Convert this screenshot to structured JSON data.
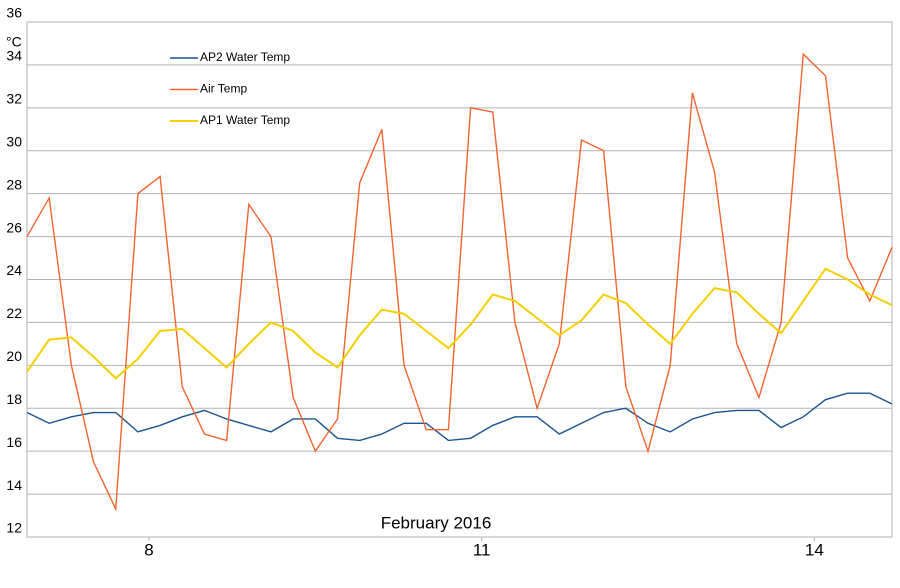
{
  "chart_data": {
    "type": "line",
    "y_label": "°C",
    "x_label": "February 2016",
    "x": [
      6.9,
      7.1,
      7.3,
      7.5,
      7.7,
      7.9,
      8.1,
      8.3,
      8.5,
      8.7,
      8.9,
      9.1,
      9.3,
      9.5,
      9.7,
      9.9,
      10.1,
      10.3,
      10.5,
      10.7,
      10.9,
      11.1,
      11.3,
      11.5,
      11.7,
      11.9,
      12.1,
      12.3,
      12.5,
      12.7,
      12.9,
      13.1,
      13.3,
      13.5,
      13.7,
      13.9,
      14.1,
      14.3,
      14.5,
      14.7
    ],
    "series": [
      {
        "name": "AP2 Water Temp",
        "color": "#1a5490",
        "values": [
          17.8,
          17.3,
          17.6,
          17.8,
          17.8,
          16.9,
          17.2,
          17.6,
          17.9,
          17.5,
          17.2,
          16.9,
          17.5,
          17.5,
          16.6,
          16.5,
          16.8,
          17.3,
          17.3,
          16.5,
          16.6,
          17.2,
          17.6,
          17.6,
          16.8,
          17.3,
          17.8,
          18.0,
          17.3,
          16.9,
          17.5,
          17.8,
          17.9,
          17.9,
          17.1,
          17.6,
          18.4,
          18.7,
          18.7,
          18.2
        ]
      },
      {
        "name": "Air Temp",
        "color": "#f26430",
        "values": [
          26,
          27.8,
          20,
          15.5,
          13.3,
          28,
          28.8,
          19,
          16.8,
          16.5,
          27.5,
          26,
          18.5,
          16,
          17.5,
          28.5,
          31,
          20,
          17,
          17,
          32,
          31.8,
          22,
          18,
          21,
          30.5,
          30,
          19,
          16,
          20,
          32.7,
          29,
          21,
          18.5,
          22,
          34.5,
          33.5,
          25,
          23,
          25.5
        ]
      },
      {
        "name": "AP1 Water Temp",
        "color": "#f5d000",
        "values": [
          19.7,
          21.2,
          21.3,
          20.4,
          19.4,
          20.3,
          21.6,
          21.7,
          20.8,
          19.9,
          21.0,
          22.0,
          21.6,
          20.6,
          19.9,
          21.4,
          22.6,
          22.4,
          21.6,
          20.8,
          21.9,
          23.3,
          23.0,
          22.2,
          21.4,
          22.1,
          23.3,
          22.9,
          21.9,
          21.0,
          22.4,
          23.6,
          23.4,
          22.4,
          21.5,
          23.0,
          24.5,
          24.0,
          23.3,
          22.8
        ]
      }
    ],
    "xlim": [
      6.9,
      14.7
    ],
    "xticks": [
      8,
      11,
      14
    ],
    "ylim": [
      12,
      36
    ],
    "yticks": [
      12,
      14,
      16,
      18,
      20,
      22,
      24,
      26,
      28,
      30,
      32,
      34,
      36
    ],
    "grid": true,
    "legend": "top-left"
  }
}
